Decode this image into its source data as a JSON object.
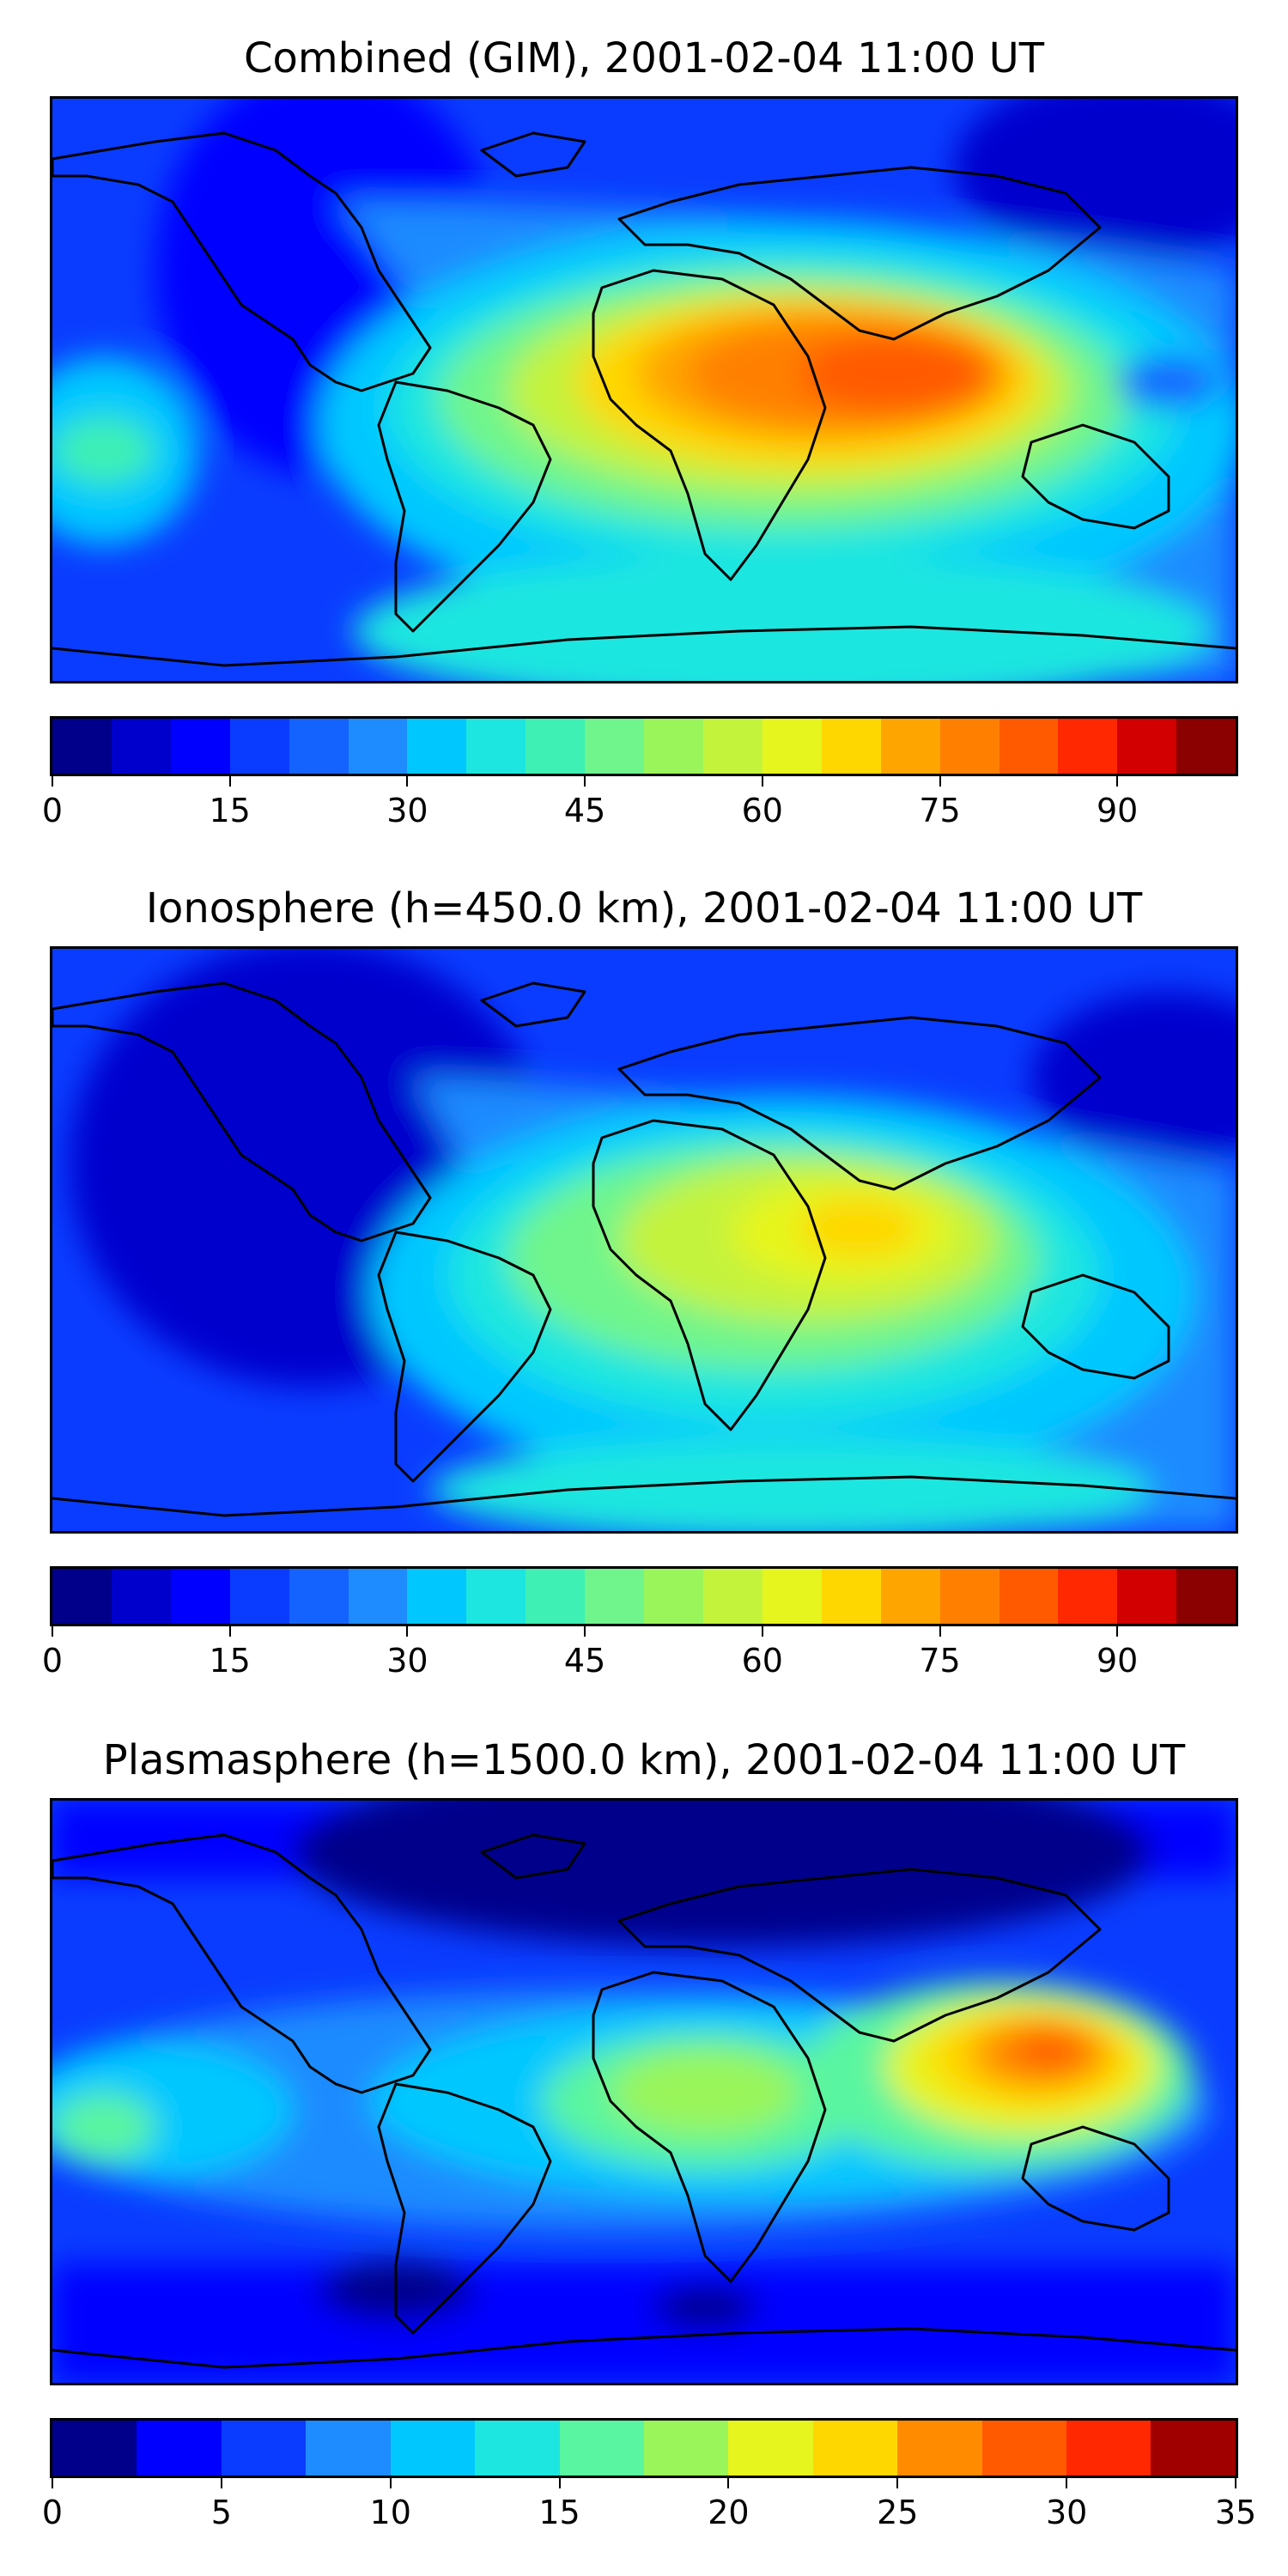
{
  "panels": [
    {
      "title": "Combined (GIM), 2001-02-04 11:00 UT",
      "colorbar": {
        "min": 0,
        "max": 100,
        "ticks": [
          "0",
          "15",
          "30",
          "45",
          "60",
          "75",
          "90"
        ],
        "colors": [
          "#00008b",
          "#0000cd",
          "#0000ff",
          "#0a3cff",
          "#1463ff",
          "#1e8bff",
          "#00c8ff",
          "#1de6e0",
          "#3ef0b4",
          "#6ff58c",
          "#9af55a",
          "#c4f33c",
          "#e6f51e",
          "#ffd700",
          "#ffa500",
          "#ff8000",
          "#ff5a00",
          "#ff2800",
          "#d20000",
          "#8b0000"
        ]
      }
    },
    {
      "title": "Ionosphere  (h=450.0 km), 2001-02-04 11:00 UT",
      "colorbar": {
        "min": 0,
        "max": 100,
        "ticks": [
          "0",
          "15",
          "30",
          "45",
          "60",
          "75",
          "90"
        ],
        "colors": [
          "#00008b",
          "#0000cd",
          "#0000ff",
          "#0a3cff",
          "#1463ff",
          "#1e8bff",
          "#00c8ff",
          "#1de6e0",
          "#3ef0b4",
          "#6ff58c",
          "#9af55a",
          "#c4f33c",
          "#e6f51e",
          "#ffd700",
          "#ffa500",
          "#ff8000",
          "#ff5a00",
          "#ff2800",
          "#d20000",
          "#8b0000"
        ]
      }
    },
    {
      "title": "Plasmasphere (h=1500.0 km), 2001-02-04 11:00 UT",
      "colorbar": {
        "min": 0,
        "max": 35,
        "ticks": [
          "0",
          "5",
          "10",
          "15",
          "20",
          "25",
          "30",
          "35"
        ],
        "colors": [
          "#00008b",
          "#0000ff",
          "#0a3cff",
          "#1e8bff",
          "#00c8ff",
          "#1de6e0",
          "#5af5a0",
          "#9af55a",
          "#e6f51e",
          "#ffd700",
          "#ff8c00",
          "#ff5a00",
          "#ff2800",
          "#a00000"
        ]
      }
    }
  ]
}
